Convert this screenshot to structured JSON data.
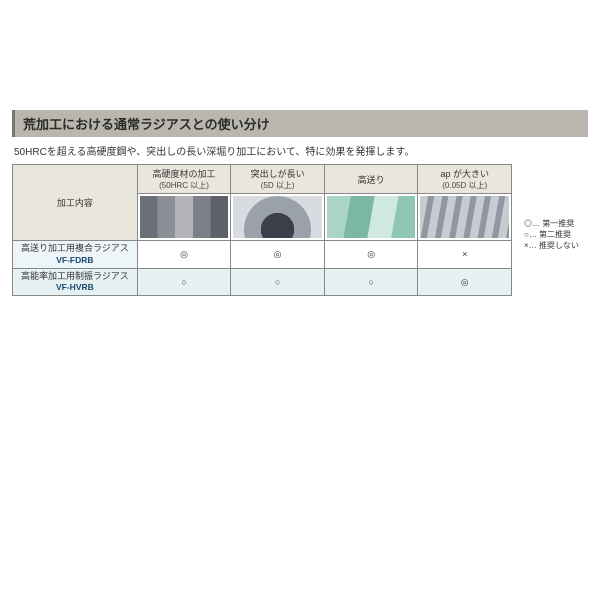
{
  "title": "荒加工における通常ラジアスとの使い分け",
  "subtitle": "50HRCを超える高硬度鋼や、突出しの長い深堀り加工において、特に効果を発揮します。",
  "row_header_label": "加工内容",
  "columns": [
    {
      "label": "高硬度材の加工",
      "sub": "(50HRC 以上)"
    },
    {
      "label": "突出しが長い",
      "sub": "(5D 以上)"
    },
    {
      "label": "高送り",
      "sub": ""
    },
    {
      "label": "ap が大きい",
      "sub": "(0.05D 以上)"
    }
  ],
  "rows": [
    {
      "label": "高送り加工用複合ラジアス",
      "code": "VF-FDRB",
      "marks": [
        "◎",
        "◎",
        "◎",
        "×"
      ]
    },
    {
      "label": "高能率加工用制振ラジアス",
      "code": "VF-HVRB",
      "marks": [
        "○",
        "○",
        "○",
        "◎"
      ]
    }
  ],
  "legend": {
    "l1": "◎… 第一推奨",
    "l2": "○… 第二推奨",
    "l3": "×… 推奨しない"
  },
  "colors": {
    "header_bg": "#e9e6dc",
    "row_alt_bg": "#e6f1f3",
    "title_bar_bg": "#b9b6ad",
    "border": "#888888"
  }
}
